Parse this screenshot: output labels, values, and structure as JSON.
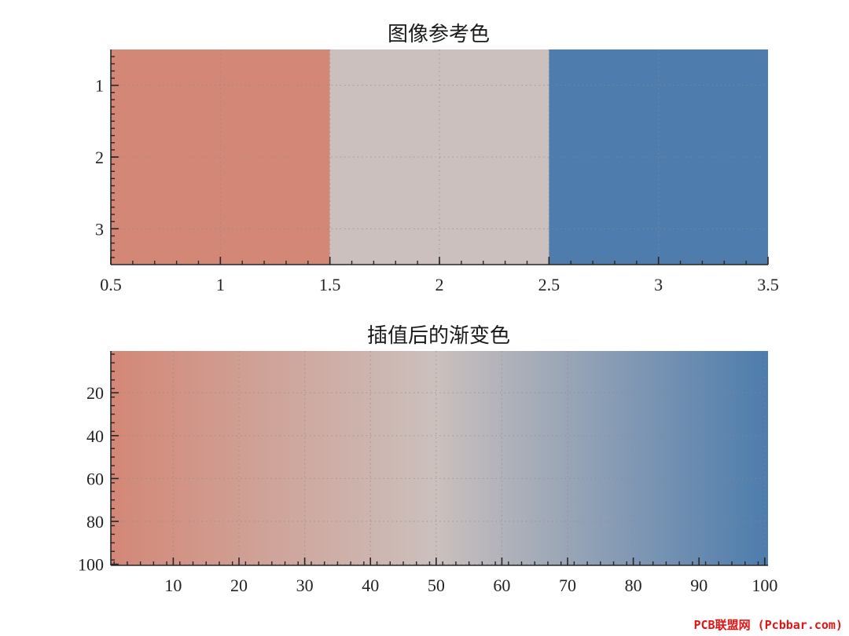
{
  "chart_data": [
    {
      "type": "heatmap",
      "title": "图像参考色",
      "xlim": [
        0.5,
        3.5
      ],
      "ylim": [
        0.5,
        3.5
      ],
      "y_reversed": true,
      "grid": true,
      "grid_style": "dotted",
      "x_ticks": [
        0.5,
        1,
        1.5,
        2,
        2.5,
        3,
        3.5
      ],
      "x_tick_labels": [
        "0.5",
        "1",
        "1.5",
        "2",
        "2.5",
        "3",
        "3.5"
      ],
      "y_ticks": [
        1,
        2,
        3
      ],
      "y_tick_labels": [
        "1",
        "2",
        "3"
      ],
      "columns": [
        {
          "x": 1,
          "color": "#D38877"
        },
        {
          "x": 2,
          "color": "#CBC0BD"
        },
        {
          "x": 3,
          "color": "#4E7DAD"
        }
      ]
    },
    {
      "type": "heatmap",
      "title": "插值后的渐变色",
      "xlim": [
        0.5,
        100.5
      ],
      "ylim": [
        0.5,
        100.5
      ],
      "y_reversed": true,
      "grid": true,
      "grid_style": "dotted",
      "x_ticks": [
        10,
        20,
        30,
        40,
        50,
        60,
        70,
        80,
        90,
        100
      ],
      "x_tick_labels": [
        "10",
        "20",
        "30",
        "40",
        "50",
        "60",
        "70",
        "80",
        "90",
        "100"
      ],
      "y_ticks": [
        20,
        40,
        60,
        80,
        100
      ],
      "y_tick_labels": [
        "20",
        "40",
        "60",
        "80",
        "100"
      ],
      "gradient_stops": [
        {
          "x": 1,
          "color": "#D38877"
        },
        {
          "x": 50,
          "color": "#CBC0BD"
        },
        {
          "x": 100,
          "color": "#4E7DAD"
        }
      ]
    }
  ],
  "watermark": "PCB联盟网 (Pcbbar.com)"
}
